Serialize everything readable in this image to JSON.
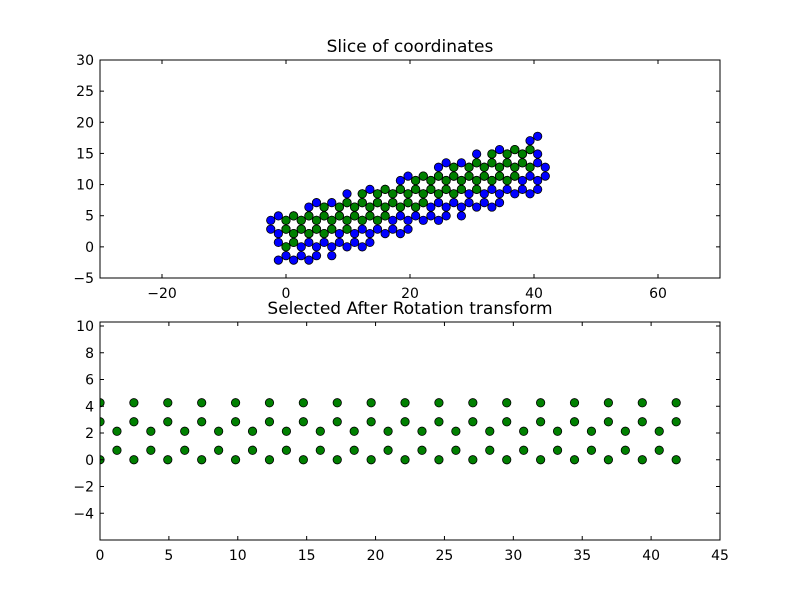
{
  "chart_data": [
    {
      "type": "scatter",
      "title": "Slice of coordinates",
      "xlabel": "",
      "ylabel": "",
      "xlim": [
        -30,
        70
      ],
      "ylim": [
        -5,
        30
      ],
      "xticks": [
        -20,
        0,
        20,
        40,
        60
      ],
      "yticks": [
        -5,
        0,
        5,
        10,
        15,
        20,
        25,
        30
      ],
      "xtick_labels": [
        "−20",
        "0",
        "20",
        "40",
        "60"
      ],
      "ytick_labels": [
        "−5",
        "0",
        "5",
        "10",
        "15",
        "20",
        "25",
        "30"
      ],
      "grid": false,
      "lattice": {
        "origin": [
          0,
          0
        ],
        "a": [
          2.46,
          0
        ],
        "b": [
          1.23,
          2.13
        ],
        "basis": [
          [
            0,
            0
          ],
          [
            1.23,
            0.71
          ]
        ],
        "axis_a": [
          0.956,
          0.292
        ],
        "axis_b": [
          -0.292,
          0.956
        ]
      },
      "series": [
        {
          "key": "all",
          "color": "#0000ff",
          "band_a": [
            -2,
            44
          ],
          "band_b": [
            -3.6,
            5.4
          ]
        },
        {
          "key": "selected",
          "color": "#008000",
          "band_a": [
            -0.5,
            42.5
          ],
          "band_b": [
            -0.3,
            4.6
          ]
        }
      ]
    },
    {
      "type": "scatter",
      "title": "Selected After Rotation transform",
      "xlabel": "",
      "ylabel": "",
      "xlim": [
        0,
        45
      ],
      "ylim": [
        -6,
        10.3
      ],
      "xticks": [
        0,
        5,
        10,
        15,
        20,
        25,
        30,
        35,
        40,
        45
      ],
      "yticks": [
        -4,
        -2,
        0,
        2,
        4,
        6,
        8,
        10
      ],
      "xtick_labels": [
        "0",
        "5",
        "10",
        "15",
        "20",
        "25",
        "30",
        "35",
        "40",
        "45"
      ],
      "ytick_labels": [
        "−4",
        "−2",
        "0",
        "2",
        "4",
        "6",
        "8",
        "10"
      ],
      "grid": false,
      "series": [
        {
          "key": "selected",
          "color": "#008000",
          "rows": [
            {
              "y": 0,
              "x_start": 0,
              "x_step": 2.46,
              "count": 18
            },
            {
              "y": 0.71,
              "x_start": 1.23,
              "x_step": 2.46,
              "count": 17
            },
            {
              "y": 2.13,
              "x_start": 1.23,
              "x_step": 2.46,
              "count": 17
            },
            {
              "y": 2.84,
              "x_start": 0,
              "x_step": 2.46,
              "count": 18
            },
            {
              "y": 4.26,
              "x_start": 0,
              "x_step": 2.46,
              "count": 18
            }
          ]
        }
      ]
    }
  ]
}
